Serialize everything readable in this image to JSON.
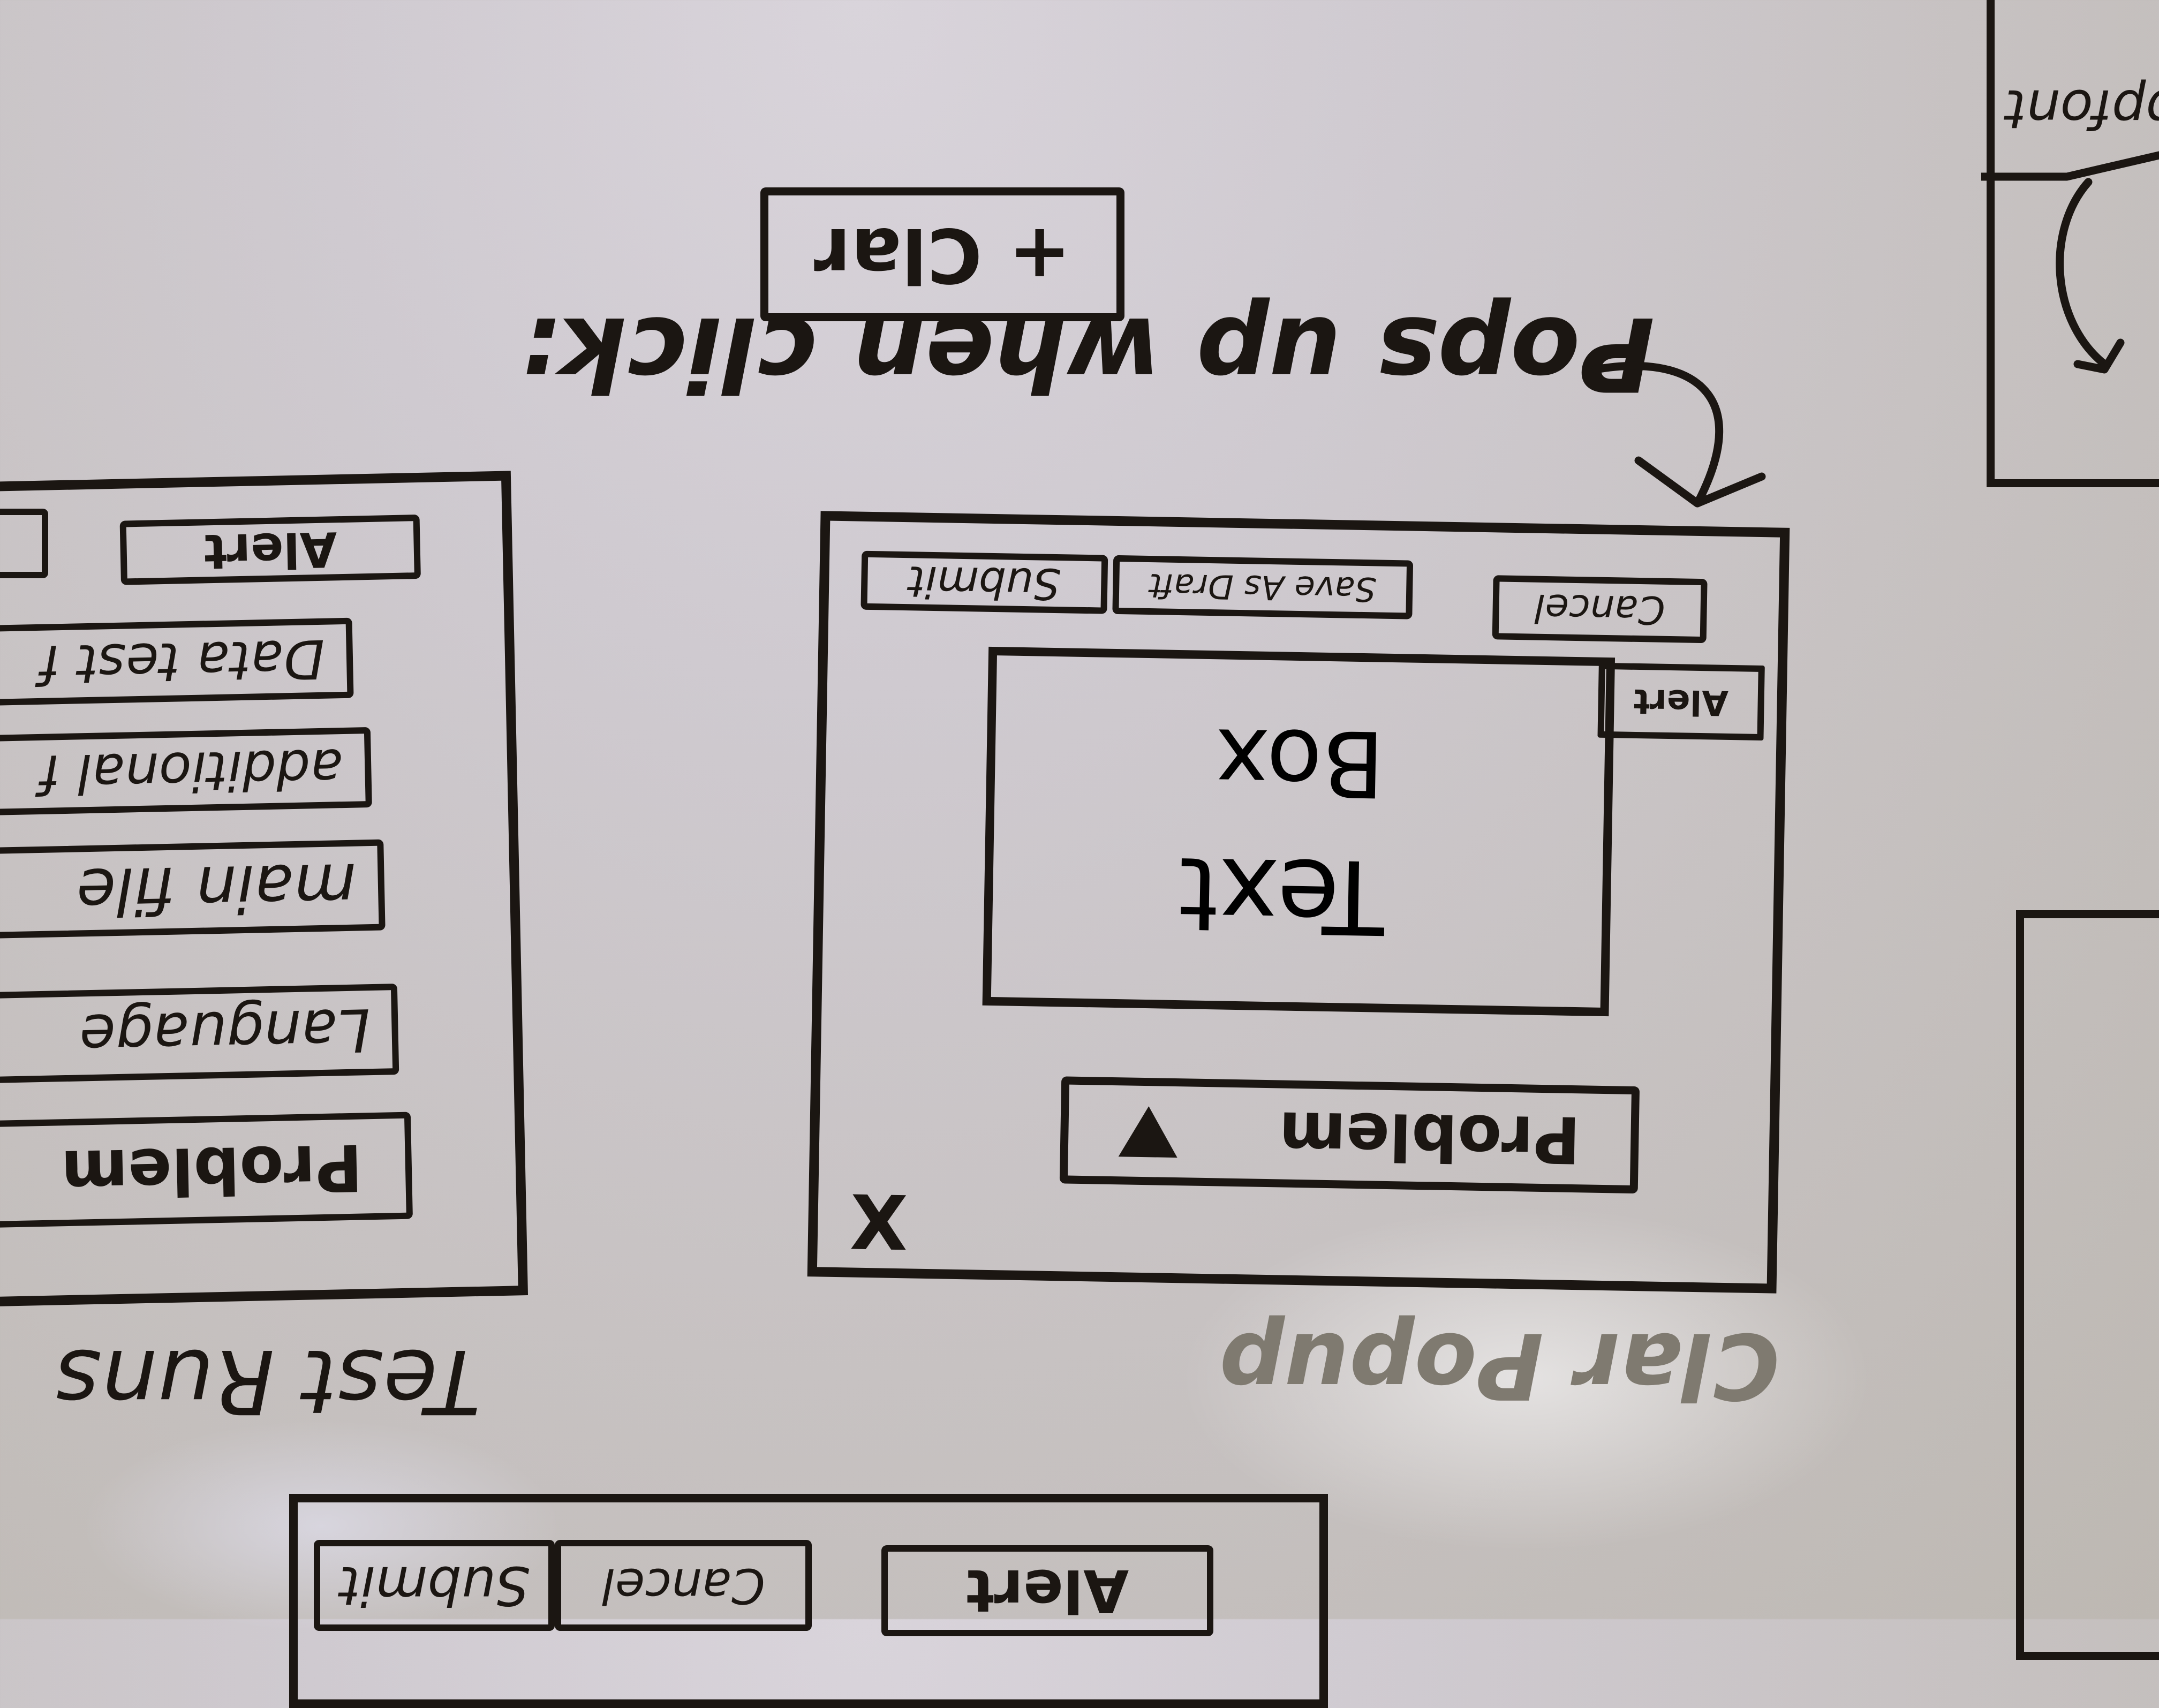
{
  "clar_button": {
    "label": "+ Clar"
  },
  "pops_up_note": "Pops up when click:",
  "clar_popup": {
    "caption": "Clar Popup",
    "buttons": {
      "submit": "Submit",
      "save_as_draft": "Save As Draft",
      "cancel": "Cancel",
      "alert": "Alert"
    },
    "text_box": {
      "line1": "Text",
      "line2": "Box"
    },
    "problem_dropdown": {
      "value": "Problem"
    },
    "close_glyph": "X"
  },
  "test_runs": {
    "caption": "Test Runs",
    "top_label": "Alert",
    "fields": [
      "Data test f",
      "additional f",
      "main file",
      "Language",
      "Problem"
    ]
  },
  "bottom_panel": {
    "buttons": {
      "submit": "Submit",
      "cancel": "Cancel",
      "alert": "Alert"
    }
  },
  "right_panel": {
    "label": "ppfont"
  },
  "colors": {
    "marker": "#1b1612",
    "board": "#cfcad0",
    "faded_marker": "#7f7a70"
  }
}
